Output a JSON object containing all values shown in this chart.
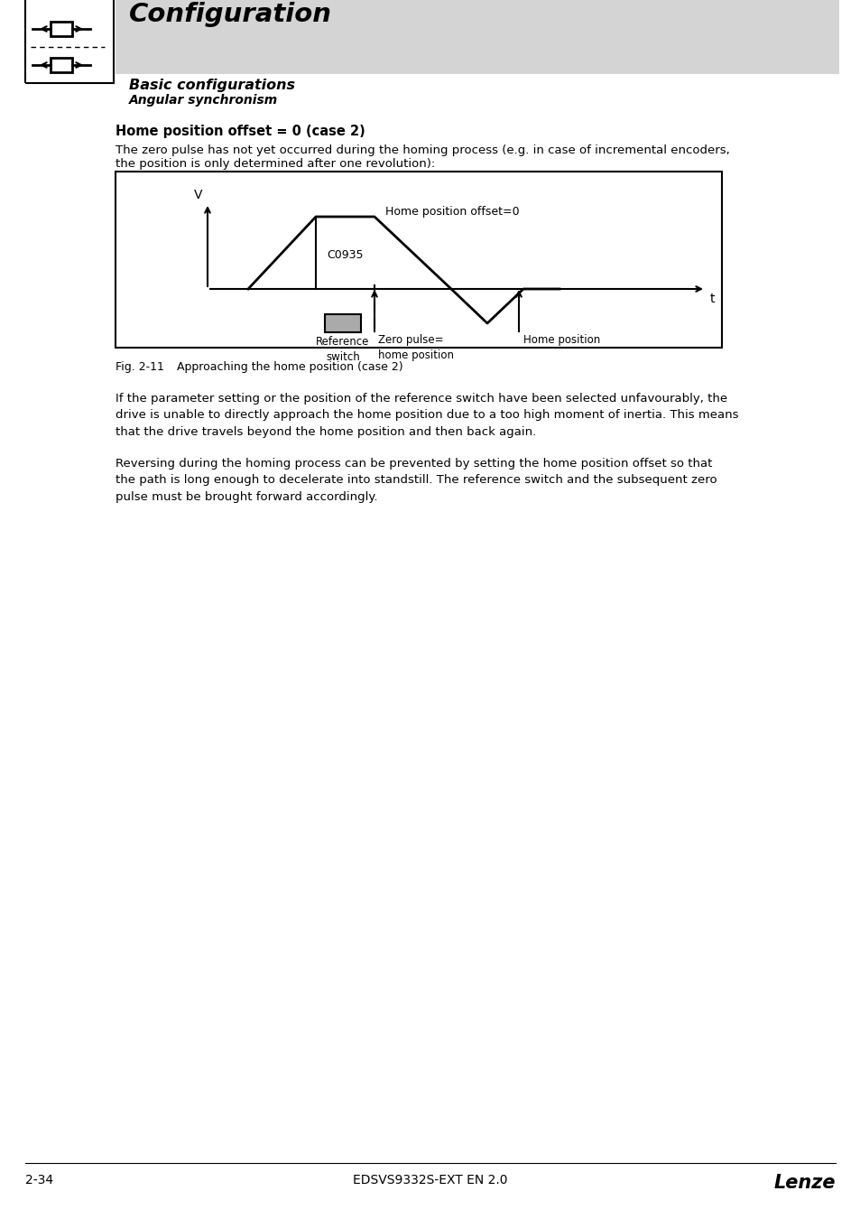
{
  "page_bg": "#ffffff",
  "header_bg": "#d4d4d4",
  "header_title": "Configuration",
  "header_subtitle": "Basic configurations",
  "header_sub2": "Angular synchronism",
  "section_heading": "Home position offset = 0 (case 2)",
  "para1_line1": "The zero pulse has not yet occurred during the homing process (e.g. in case of incremental encoders,",
  "para1_line2": "the position is only determined after one revolution):",
  "v_label": "V",
  "t_label": "t",
  "c0935_label": "C0935",
  "home_offset_label": "Home position offset=0",
  "ref_switch_label": "Reference\nswitch",
  "zero_pulse_label": "Zero pulse=\nhome position",
  "home_pos_label": "Home position",
  "fig_label": "Fig. 2-11",
  "fig_caption_text": "Approaching the home position (case 2)",
  "para2": "If the parameter setting or the position of the reference switch have been selected unfavourably, the\ndrive is unable to directly approach the home position due to a too high moment of inertia. This means\nthat the drive travels beyond the home position and then back again.",
  "para3": "Reversing during the homing process can be prevented by setting the home position offset so that\nthe path is long enough to decelerate into standstill. The reference switch and the subsequent zero\npulse must be brought forward accordingly.",
  "footer_left": "2-34",
  "footer_center": "EDSVS9332S-EXT EN 2.0",
  "footer_right": "Lenze"
}
